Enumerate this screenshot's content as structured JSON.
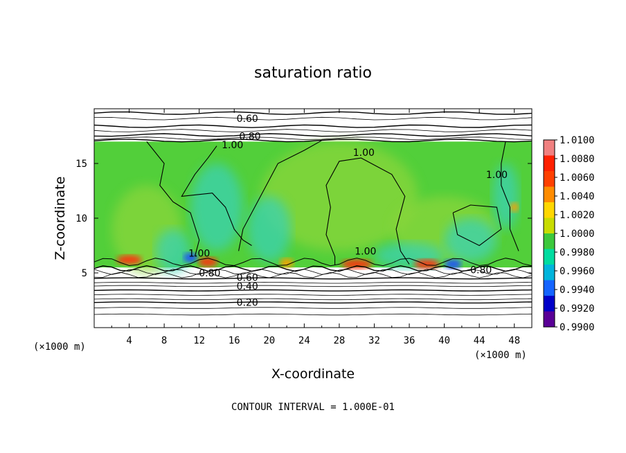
{
  "chart_data": {
    "type": "heatmap",
    "title": "saturation ratio",
    "xlabel": "X-coordinate",
    "ylabel": "Z-coordinate",
    "x_unit_left": "(×1000 m)",
    "x_unit_right": "(×1000 m)",
    "footer": "CONTOUR INTERVAL = 1.000E-01",
    "xlim": [
      0,
      50
    ],
    "ylim": [
      0,
      20
    ],
    "x_ticks": [
      4,
      8,
      12,
      16,
      20,
      24,
      28,
      32,
      36,
      40,
      44,
      48
    ],
    "y_ticks": [
      5,
      10,
      15
    ],
    "colorbar": {
      "labels": [
        "1.0100",
        "1.0080",
        "1.0060",
        "1.0040",
        "1.0020",
        "1.0000",
        "0.9980",
        "0.9960",
        "0.9940",
        "0.9920",
        "0.9900"
      ],
      "colors": [
        "#f08080",
        "#ff2000",
        "#ff4000",
        "#ff8c00",
        "#ffd700",
        "#c8dc00",
        "#3cc83c",
        "#00dca0",
        "#00b4dc",
        "#1464ff",
        "#0000c8",
        "#5a0096"
      ]
    },
    "field_colors": {
      "background": "#52cf3a",
      "light": "#8ad63a",
      "cyan": "#3ad2b4",
      "blue": "#1e50ff",
      "red": "#ff3010",
      "orange": "#ffa000"
    },
    "saturated_layer": {
      "z_bottom": 5.5,
      "z_top": 17.0
    },
    "contour_labels": [
      {
        "text": "0.60",
        "x": 17.5,
        "z": 19.1
      },
      {
        "text": "0.80",
        "x": 17.8,
        "z": 17.5
      },
      {
        "text": "1.00",
        "x": 15.8,
        "z": 16.7
      },
      {
        "text": "1.00",
        "x": 30.8,
        "z": 16.0
      },
      {
        "text": "1.00",
        "x": 46.0,
        "z": 14.0
      },
      {
        "text": "1.00",
        "x": 12.0,
        "z": 6.8
      },
      {
        "text": "1.00",
        "x": 31.0,
        "z": 7.0
      },
      {
        "text": "0.80",
        "x": 13.2,
        "z": 5.0
      },
      {
        "text": "0.60",
        "x": 17.5,
        "z": 4.6
      },
      {
        "text": "0.80",
        "x": 44.2,
        "z": 5.3
      },
      {
        "text": "0.40",
        "x": 17.5,
        "z": 3.8
      },
      {
        "text": "0.20",
        "x": 17.5,
        "z": 2.3
      }
    ]
  }
}
